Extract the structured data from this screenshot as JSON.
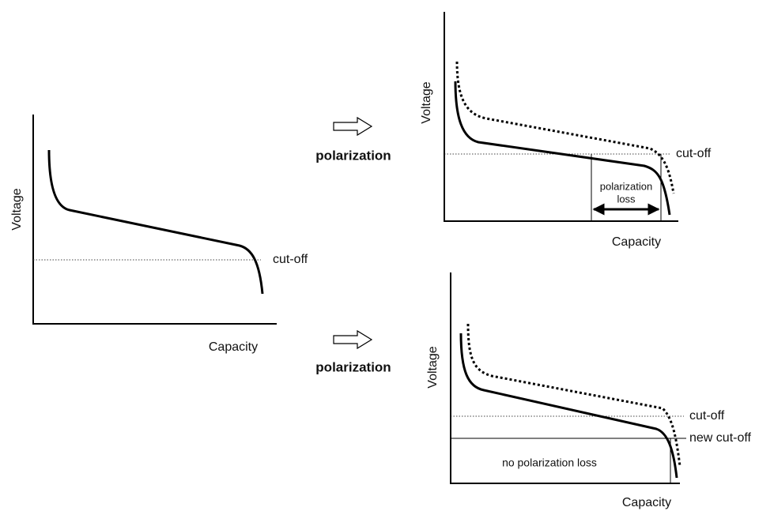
{
  "left_panel": {
    "y_axis_label": "Voltage",
    "x_axis_label": "Capacity",
    "cutoff_label": "cut-off"
  },
  "arrows": [
    {
      "label": "polarization"
    },
    {
      "label": "polarization"
    }
  ],
  "top_right_panel": {
    "y_axis_label": "Voltage",
    "x_axis_label": "Capacity",
    "cutoff_label": "cut-off",
    "loss_label": [
      "polarization",
      "loss"
    ]
  },
  "bottom_right_panel": {
    "y_axis_label": "Voltage",
    "x_axis_label": "Capacity",
    "cutoff_label": "cut-off",
    "new_cutoff_label": "new cut-off",
    "loss_label": "no polarization loss"
  }
}
